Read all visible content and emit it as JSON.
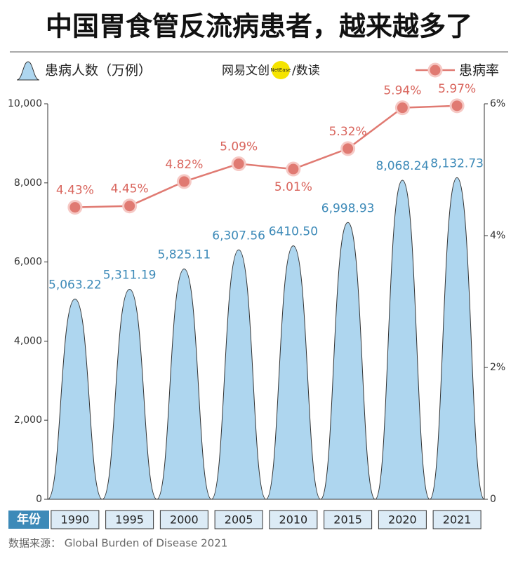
{
  "title": "中国胃食管反流病患者，越来越多了",
  "logo": {
    "name": "网易文创",
    "badge": "NetEase",
    "column": "/数读"
  },
  "source": "数据来源：  Global Burden of Disease 2021",
  "chart_data": {
    "type": "bar",
    "xlabel": "年份",
    "categories": [
      "1990",
      "1995",
      "2000",
      "2005",
      "2010",
      "2015",
      "2020",
      "2021"
    ],
    "series": [
      {
        "name": "患病人数（万例）",
        "type": "bar",
        "color": "#aed6ef",
        "values": [
          5063.22,
          5311.19,
          5825.11,
          6307.56,
          6410.5,
          6998.93,
          8068.24,
          8132.73
        ],
        "value_labels": [
          "5,063.22",
          "5,311.19",
          "5,825.11",
          "6,307.56",
          "6410.50",
          "6,998.93",
          "8,068.24",
          "8,132.73"
        ]
      },
      {
        "name": "患病率",
        "type": "line",
        "axis": "y2",
        "color": "#e07a72",
        "values": [
          4.43,
          4.45,
          4.82,
          5.09,
          5.01,
          5.32,
          5.94,
          5.97
        ],
        "value_labels": [
          "4.43%",
          "4.45%",
          "4.82%",
          "5.09%",
          "5.01%",
          "5.32%",
          "5.94%",
          "5.97%"
        ]
      }
    ],
    "ylim": [
      0,
      10000
    ],
    "yticks": [
      0,
      {
        "value": 2000,
        "label": "2,000"
      },
      {
        "value": 4000,
        "label": "4,000"
      },
      {
        "value": 6000,
        "label": "6,000"
      },
      {
        "value": 8000,
        "label": "8,000"
      },
      {
        "value": 10000,
        "label": "10,000"
      }
    ],
    "y2lim": [
      0,
      6
    ],
    "y2ticks": [
      0,
      {
        "value": 2,
        "label": "2%"
      },
      {
        "value": 4,
        "label": "4%"
      },
      {
        "value": 6,
        "label": "6%"
      }
    ]
  }
}
